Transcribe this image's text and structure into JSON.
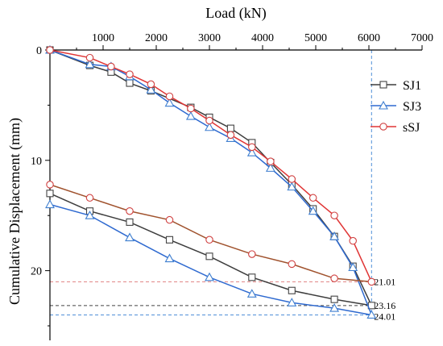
{
  "chart_data": {
    "type": "line",
    "xlabel": "Load (kN)",
    "ylabel": "Cumulative Displacement (mm)",
    "xlim": [
      0,
      7000
    ],
    "ylim": [
      0,
      25
    ],
    "x_axis_position": "top",
    "y_inverted": true,
    "x_ticks": [
      1000,
      2000,
      3000,
      4000,
      5000,
      6000,
      7000
    ],
    "y_ticks": [
      0,
      10,
      20
    ],
    "grid": false,
    "legend_position": "right",
    "series": [
      {
        "name": "SJ1",
        "color": "#555555",
        "marker": "square",
        "loading": [
          [
            0,
            0
          ],
          [
            750,
            1.4
          ],
          [
            1150,
            2.0
          ],
          [
            1500,
            3.0
          ],
          [
            1900,
            3.7
          ],
          [
            2650,
            5.2
          ],
          [
            3000,
            6.1
          ],
          [
            3400,
            7.1
          ],
          [
            3800,
            8.4
          ],
          [
            4150,
            10.2
          ],
          [
            4550,
            12.2
          ],
          [
            4950,
            14.4
          ],
          [
            5350,
            16.9
          ],
          [
            5700,
            19.6
          ],
          [
            6050,
            23.16
          ]
        ],
        "unloading": [
          [
            6050,
            23.16
          ],
          [
            5350,
            22.6
          ],
          [
            4550,
            21.8
          ],
          [
            3800,
            20.6
          ],
          [
            3000,
            18.7
          ],
          [
            2250,
            17.2
          ],
          [
            1500,
            15.6
          ],
          [
            750,
            14.6
          ],
          [
            0,
            13.0
          ]
        ]
      },
      {
        "name": "SJ3",
        "color": "#3f7fd0",
        "marker": "triangle",
        "loading": [
          [
            0,
            0
          ],
          [
            750,
            1.3
          ],
          [
            1150,
            1.5
          ],
          [
            1500,
            2.4
          ],
          [
            1900,
            3.6
          ],
          [
            2250,
            4.8
          ],
          [
            2650,
            6.0
          ],
          [
            3000,
            7.0
          ],
          [
            3400,
            8.0
          ],
          [
            3800,
            9.3
          ],
          [
            4150,
            10.7
          ],
          [
            4550,
            12.4
          ],
          [
            4950,
            14.6
          ],
          [
            5350,
            16.9
          ],
          [
            5700,
            19.7
          ],
          [
            6050,
            24.01
          ]
        ],
        "unloading": [
          [
            6050,
            24.01
          ],
          [
            5350,
            23.4
          ],
          [
            4550,
            22.9
          ],
          [
            3800,
            22.1
          ],
          [
            3000,
            20.6
          ],
          [
            2250,
            18.9
          ],
          [
            1500,
            17.0
          ],
          [
            750,
            15.0
          ],
          [
            0,
            14.0
          ]
        ]
      },
      {
        "name": "sSJ",
        "color": "#e03c3c",
        "marker": "circle",
        "loading": [
          [
            0,
            0
          ],
          [
            750,
            0.7
          ],
          [
            1150,
            1.5
          ],
          [
            1500,
            2.2
          ],
          [
            1900,
            3.1
          ],
          [
            2250,
            4.2
          ],
          [
            2650,
            5.3
          ],
          [
            3000,
            6.4
          ],
          [
            3400,
            7.7
          ],
          [
            3800,
            8.8
          ],
          [
            4150,
            10.1
          ],
          [
            4550,
            11.7
          ],
          [
            4950,
            13.4
          ],
          [
            5350,
            15.0
          ],
          [
            5700,
            17.3
          ],
          [
            6050,
            21.01
          ]
        ],
        "unloading": [
          [
            6050,
            21.01
          ],
          [
            5350,
            20.7
          ],
          [
            4550,
            19.4
          ],
          [
            3800,
            18.5
          ],
          [
            3000,
            17.2
          ],
          [
            2250,
            15.4
          ],
          [
            1500,
            14.6
          ],
          [
            750,
            13.4
          ],
          [
            0,
            12.2
          ]
        ]
      }
    ],
    "reference_lines": [
      {
        "y": 21.01,
        "label": "21.01",
        "color": "#e08080"
      },
      {
        "y": 23.16,
        "label": "23.16",
        "color": "#444444"
      },
      {
        "y": 24.01,
        "label": "24.01",
        "color": "#4f8fd8"
      }
    ],
    "vertical_reference": {
      "x": 6050,
      "color": "#4f8fd8"
    }
  }
}
